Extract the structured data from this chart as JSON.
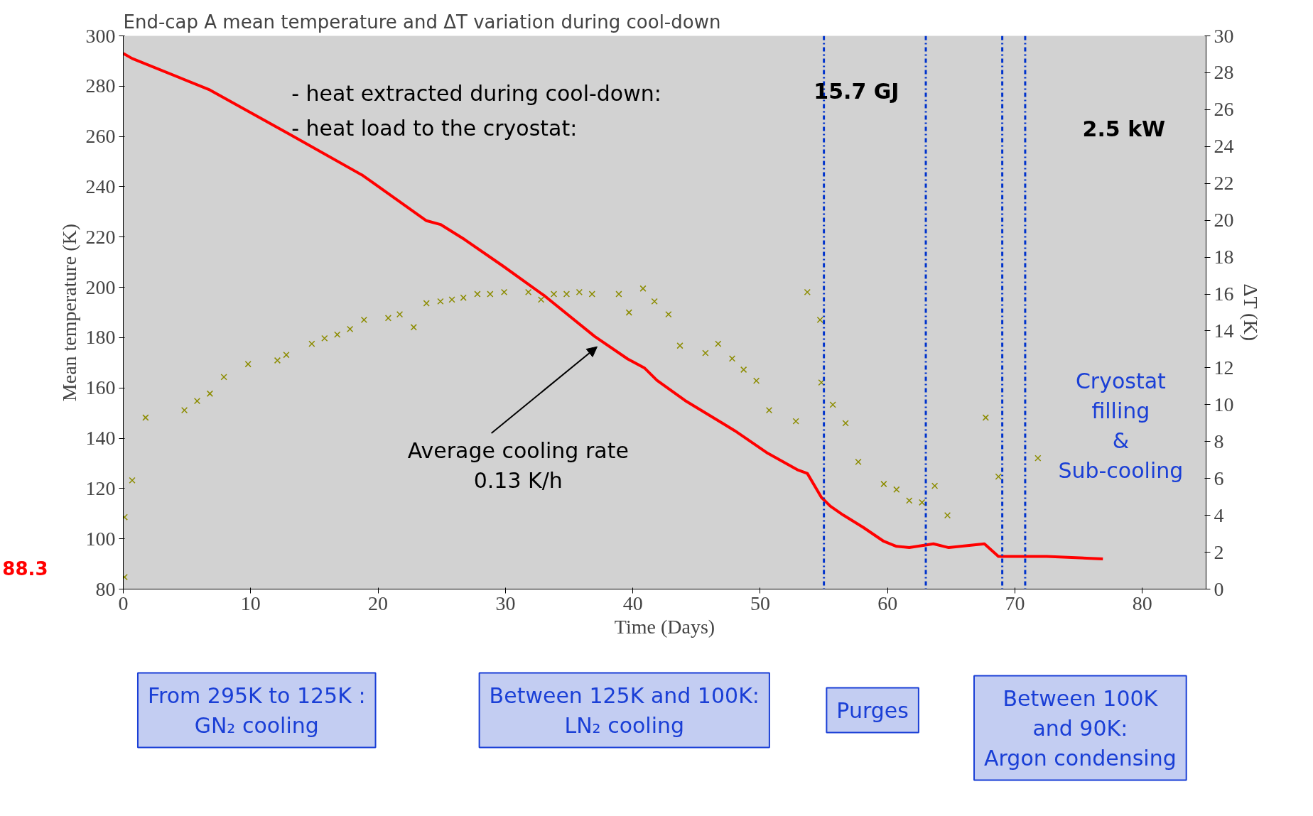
{
  "chart_data": {
    "type": "line",
    "title": "End-cap A mean temperature and ΔT variation during cool-down",
    "xlabel": "Time (Days)",
    "ylabel": "Mean temperature (K)",
    "y2label": "ΔT (K)",
    "xlim": [
      0,
      85
    ],
    "xticks": [
      0,
      10,
      20,
      30,
      40,
      50,
      60,
      70,
      80
    ],
    "ylim": [
      80,
      300
    ],
    "yticks": [
      80,
      100,
      120,
      140,
      160,
      180,
      200,
      220,
      240,
      260,
      280,
      300
    ],
    "y2lim": [
      0,
      30
    ],
    "y2ticks": [
      0,
      2,
      4,
      6,
      8,
      10,
      12,
      14,
      16,
      18,
      20,
      22,
      24,
      26,
      28,
      30
    ],
    "grid": false,
    "series": [
      {
        "color": "#ff0000",
        "axis": "y",
        "line_style": "solid",
        "x": [
          0,
          0.7,
          6.8,
          13,
          18.8,
          23.8,
          24.9,
          26.8,
          29.8,
          33.1,
          37,
          39.6,
          40.9,
          41.9,
          44.1,
          48,
          50.6,
          52.9,
          53.7,
          54.8,
          55.5,
          56.5,
          58.1,
          59.7,
          60.7,
          61.7,
          63.6,
          64.8,
          67.6,
          68.7,
          72.5,
          76.9
        ],
        "values": [
          293,
          291,
          278.5,
          261,
          244.5,
          226.5,
          225,
          219,
          208.5,
          196.5,
          180.5,
          171.5,
          168,
          163,
          155,
          143,
          134,
          127.5,
          126,
          116.5,
          113,
          109.5,
          104.5,
          99,
          97,
          96.5,
          98,
          96.5,
          98,
          93,
          93,
          92
        ]
      },
      {
        "type": "scatter",
        "color": "#8c8c00",
        "axis": "y2",
        "marker": "cross",
        "x": [
          0.1,
          0.1,
          0.7,
          1.75,
          4.8,
          5.8,
          6.8,
          7.9,
          9.8,
          12.1,
          12.8,
          14.8,
          15.8,
          16.8,
          17.8,
          18.9,
          20.8,
          21.7,
          22.8,
          23.8,
          24.9,
          25.8,
          26.7,
          27.8,
          28.8,
          29.9,
          31.8,
          32.8,
          33.8,
          34.8,
          35.8,
          36.8,
          38.9,
          39.7,
          40.8,
          41.7,
          42.8,
          43.7,
          45.7,
          46.7,
          47.8,
          48.7,
          49.7,
          50.7,
          52.8,
          53.7,
          54.7,
          54.8,
          55.7,
          56.7,
          57.7,
          59.7,
          60.7,
          61.7,
          62.7,
          63.7,
          64.7,
          67.7,
          68.7,
          71.8
        ],
        "values": [
          0.65,
          3.9,
          5.9,
          9.3,
          9.7,
          10.2,
          10.6,
          11.5,
          12.2,
          12.4,
          12.7,
          13.3,
          13.6,
          13.8,
          14.1,
          14.6,
          14.7,
          14.9,
          14.2,
          15.5,
          15.6,
          15.7,
          15.8,
          16.0,
          16.0,
          16.1,
          16.1,
          15.7,
          16.0,
          16.0,
          16.1,
          16.0,
          16.0,
          15.0,
          16.3,
          15.6,
          14.9,
          13.2,
          12.8,
          13.3,
          12.5,
          11.9,
          11.3,
          9.7,
          9.1,
          16.1,
          14.6,
          11.2,
          10.0,
          9.0,
          6.9,
          5.7,
          5.4,
          4.8,
          4.7,
          5.6,
          4.0,
          9.3,
          6.1,
          7.1
        ]
      }
    ],
    "ref_lines": [
      {
        "axis": "x",
        "value": 55,
        "color": "#0033cc",
        "line_style": "dashdot"
      },
      {
        "axis": "x",
        "value": 63,
        "color": "#0033cc",
        "line_style": "dashdot"
      },
      {
        "axis": "x",
        "value": 69,
        "color": "#0033cc",
        "line_style": "dashdot"
      },
      {
        "axis": "x",
        "value": 70.8,
        "color": "#0033cc",
        "line_style": "dashdot"
      }
    ],
    "annotations": [
      "- heat extracted during cool-down:",
      "15.7 GJ",
      "- heat load to the cryostat:",
      "2.5 kW",
      "Average cooling rate\n0.13 K/h",
      "Cryostat\nfilling\n&\nSub-cooling",
      "From 295K to 125K :\nGN₂ cooling",
      "Between 125K and 100K:\nLN₂ cooling",
      "Purges",
      "Between 100K\nand 90K:\nArgon condensing",
      "88.3"
    ]
  }
}
